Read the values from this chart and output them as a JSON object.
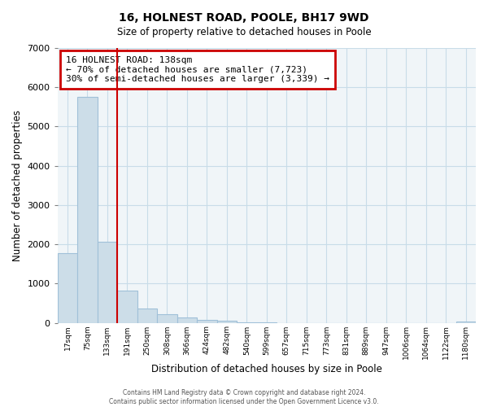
{
  "title": "16, HOLNEST ROAD, POOLE, BH17 9WD",
  "subtitle": "Size of property relative to detached houses in Poole",
  "xlabel": "Distribution of detached houses by size in Poole",
  "ylabel": "Number of detached properties",
  "bar_color": "#ccdde8",
  "bar_edge_color": "#a0c0d8",
  "highlight_color": "#cc0000",
  "highlight_index": 2,
  "annotation_title": "16 HOLNEST ROAD: 138sqm",
  "annotation_line1": "← 70% of detached houses are smaller (7,723)",
  "annotation_line2": "30% of semi-detached houses are larger (3,339) →",
  "categories": [
    "17sqm",
    "75sqm",
    "133sqm",
    "191sqm",
    "250sqm",
    "308sqm",
    "366sqm",
    "424sqm",
    "482sqm",
    "540sqm",
    "599sqm",
    "657sqm",
    "715sqm",
    "773sqm",
    "831sqm",
    "889sqm",
    "947sqm",
    "1006sqm",
    "1064sqm",
    "1122sqm",
    "1180sqm"
  ],
  "values": [
    1780,
    5760,
    2060,
    830,
    370,
    225,
    130,
    80,
    45,
    10,
    5,
    0,
    0,
    0,
    0,
    0,
    0,
    0,
    0,
    0,
    30
  ],
  "ylim": [
    0,
    7000
  ],
  "yticks": [
    0,
    1000,
    2000,
    3000,
    4000,
    5000,
    6000,
    7000
  ],
  "footer_line1": "Contains HM Land Registry data © Crown copyright and database right 2024.",
  "footer_line2": "Contains public sector information licensed under the Open Government Licence v3.0.",
  "bg_color": "#f0f4f8"
}
